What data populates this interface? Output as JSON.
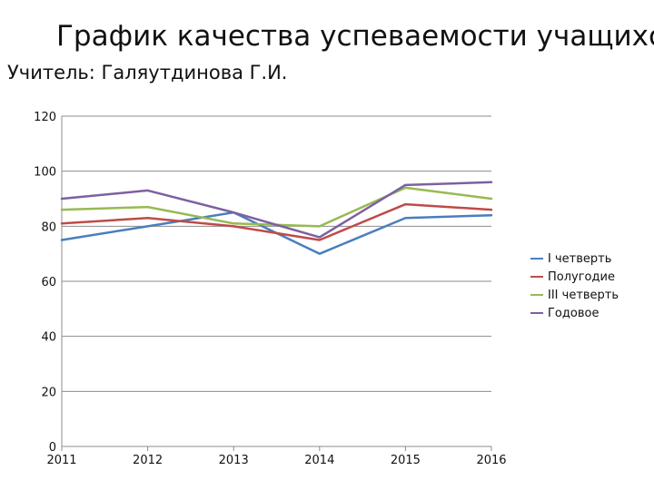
{
  "title": "График качества успеваемости учащихся",
  "subtitle": "Учитель: Галяутдинова Г.И.",
  "chart_data": {
    "type": "line",
    "title": "График качества успеваемости учащихся",
    "subtitle": "Учитель: Галяутдинова Г.И.",
    "xlabel": "",
    "ylabel": "",
    "x": [
      "2011",
      "2012",
      "2013",
      "2014",
      "2015",
      "2016"
    ],
    "ylim": [
      0,
      120
    ],
    "yticks": [
      0,
      20,
      40,
      60,
      80,
      100,
      120
    ],
    "grid": "horizontal",
    "legend_position": "right",
    "series": [
      {
        "name": "I четверть",
        "color": "#4a7ebb",
        "values": [
          75,
          80,
          85,
          70,
          83,
          84
        ]
      },
      {
        "name": "Полугодие",
        "color": "#be4b48",
        "values": [
          81,
          83,
          80,
          75,
          88,
          86
        ]
      },
      {
        "name": "III четверть",
        "color": "#98b954",
        "values": [
          86,
          87,
          81,
          80,
          94,
          90
        ]
      },
      {
        "name": "Годовое",
        "color": "#7d60a0",
        "values": [
          90,
          93,
          85,
          76,
          95,
          96
        ]
      }
    ]
  }
}
